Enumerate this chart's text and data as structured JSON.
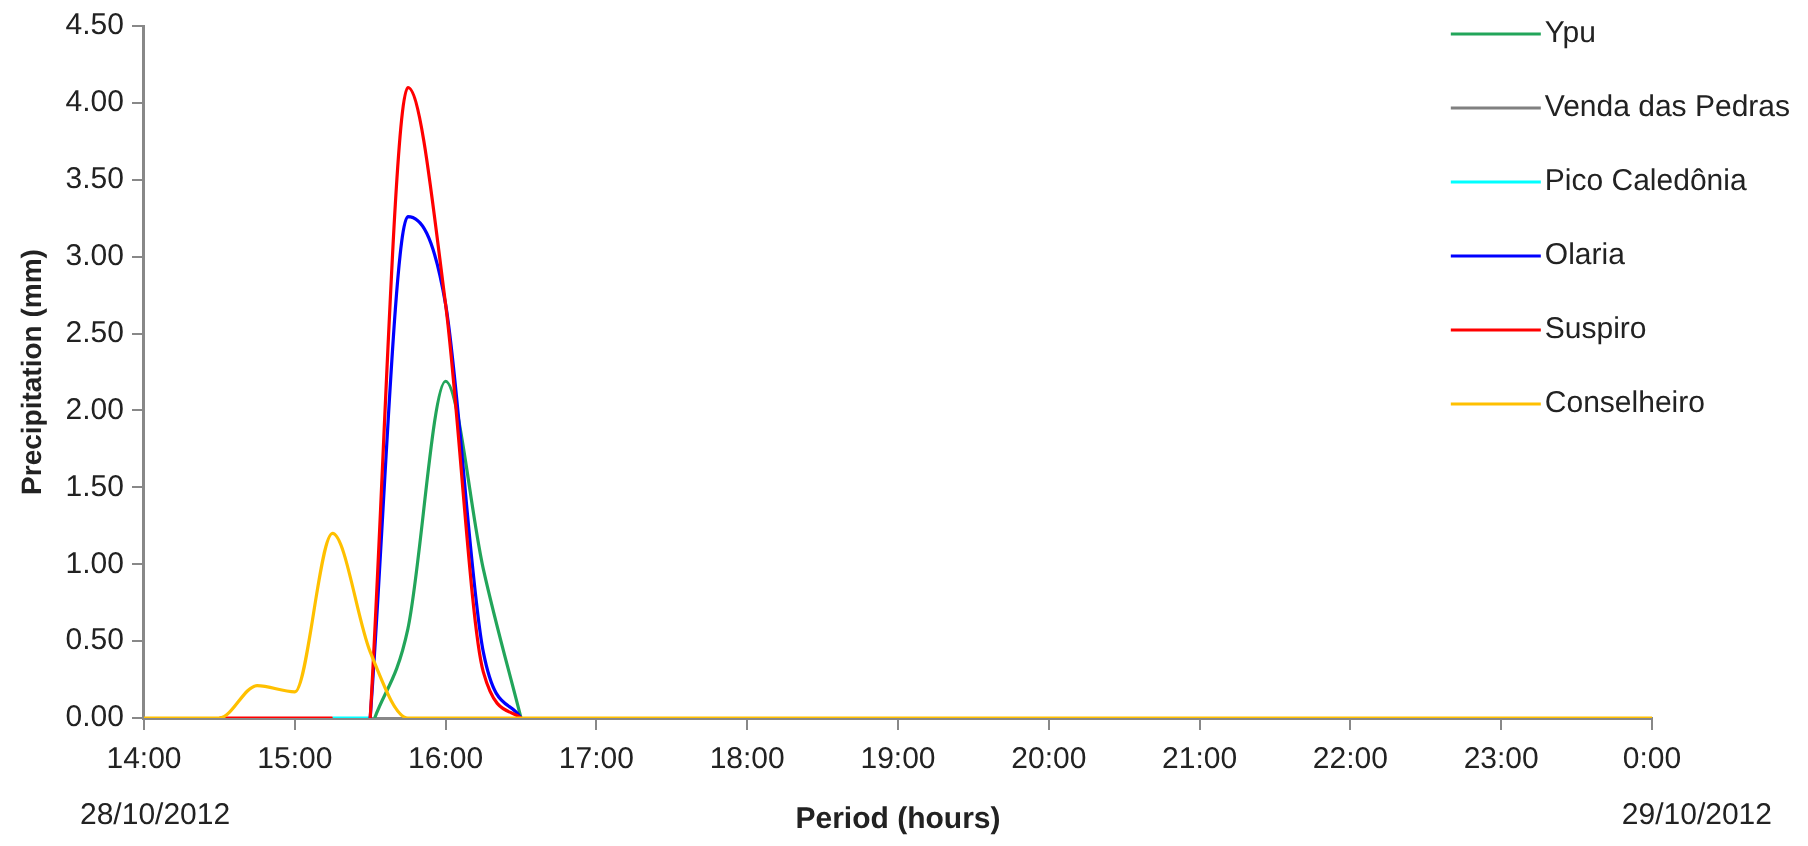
{
  "chart_data": {
    "type": "line",
    "xlabel": "Period (hours)",
    "ylabel": "Precipitation (mm)",
    "x": [
      14,
      14.25,
      14.5,
      14.75,
      15,
      15.25,
      15.5,
      15.75,
      16,
      16.25,
      16.5,
      16.75,
      17,
      17.25,
      17.5,
      17.75,
      18,
      18.25,
      18.5,
      18.75,
      19,
      19.25,
      19.5,
      19.75,
      20,
      20.25,
      20.5,
      20.75,
      21,
      21.25,
      21.5,
      21.75,
      22,
      22.25,
      22.5,
      22.75,
      23,
      23.25,
      23.5,
      23.75,
      24
    ],
    "xlim": [
      14,
      24
    ],
    "xticks": [
      {
        "value": 14,
        "label": "14:00"
      },
      {
        "value": 15,
        "label": "15:00"
      },
      {
        "value": 16,
        "label": "16:00"
      },
      {
        "value": 17,
        "label": "17:00"
      },
      {
        "value": 18,
        "label": "18:00"
      },
      {
        "value": 19,
        "label": "19:00"
      },
      {
        "value": 20,
        "label": "20:00"
      },
      {
        "value": 21,
        "label": "21:00"
      },
      {
        "value": 22,
        "label": "22:00"
      },
      {
        "value": 23,
        "label": "23:00"
      },
      {
        "value": 24,
        "label": "0:00"
      }
    ],
    "ylim": [
      0,
      4.5
    ],
    "yticks": [
      {
        "value": 0,
        "label": "0.00"
      },
      {
        "value": 0.5,
        "label": "0.50"
      },
      {
        "value": 1,
        "label": "1.00"
      },
      {
        "value": 1.5,
        "label": "1.50"
      },
      {
        "value": 2,
        "label": "2.00"
      },
      {
        "value": 2.5,
        "label": "2.50"
      },
      {
        "value": 3,
        "label": "3.00"
      },
      {
        "value": 3.5,
        "label": "3.50"
      },
      {
        "value": 4,
        "label": "4.00"
      },
      {
        "value": 4.5,
        "label": "4.50"
      }
    ],
    "series": [
      {
        "name": "Ypu",
        "color": "#22a55a",
        "x": [
          15.53,
          15.75,
          16,
          16.25,
          16.5
        ],
        "values": [
          0,
          0.58,
          2.19,
          0.97,
          0
        ]
      },
      {
        "name": "Venda das Pedras",
        "color": "#808080",
        "values": [
          null,
          null,
          null,
          null,
          null,
          null,
          null,
          null,
          null,
          null,
          null,
          null,
          null,
          null,
          null,
          null,
          null,
          null,
          null,
          null,
          null,
          null,
          null,
          null,
          null,
          null,
          null,
          null,
          null,
          null,
          null,
          null,
          null,
          null,
          null,
          null,
          null,
          null,
          null,
          null,
          null
        ]
      },
      {
        "name": "Pico Caledônia",
        "color": "#00ffff",
        "x": [
          15.25,
          15.5
        ],
        "values": [
          0,
          0
        ]
      },
      {
        "name": "Olaria",
        "color": "#0000ff",
        "x": [
          15.5,
          15.75,
          16,
          16.25,
          16.5
        ],
        "values": [
          0,
          3.26,
          2.69,
          0.43,
          0
        ]
      },
      {
        "name": "Suspiro",
        "color": "#ff0000",
        "x": [
          14.5,
          14.75,
          15,
          15.25,
          15.375,
          15.5,
          15.75,
          16,
          16.25,
          16.5
        ],
        "values": [
          0,
          0,
          0,
          0,
          null,
          0,
          4.1,
          2.69,
          0.3,
          0
        ]
      },
      {
        "name": "Conselheiro",
        "color": "#ffc000",
        "values": [
          0,
          0,
          0,
          0.21,
          0.17,
          1.2,
          0.43,
          0,
          0,
          0,
          0,
          0,
          0,
          0,
          0,
          0,
          0,
          0,
          0,
          0,
          0,
          0,
          0,
          0,
          0,
          0,
          0,
          0,
          0,
          0,
          0,
          0,
          0,
          0,
          0,
          0,
          0,
          0,
          0,
          0,
          0
        ]
      }
    ],
    "annotations": [
      "28/10/2012",
      "29/10/2012"
    ],
    "legend": "top right",
    "grid": false,
    "marker": "none",
    "line_style": "solid"
  }
}
